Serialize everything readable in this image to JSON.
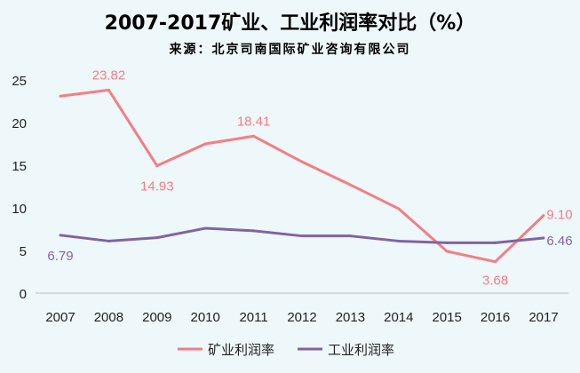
{
  "chart_data": {
    "type": "line",
    "title": "2007-2017矿业、工业利润率对比（%）",
    "subtitle": "来源：北京司南国际矿业咨询有限公司",
    "categories": [
      "2007",
      "2008",
      "2009",
      "2010",
      "2011",
      "2012",
      "2013",
      "2014",
      "2015",
      "2016",
      "2017"
    ],
    "ylim": [
      0,
      25
    ],
    "yticks": [
      "0",
      "5",
      "10",
      "15",
      "20",
      "25"
    ],
    "grid": false,
    "legend": "bottom",
    "series": [
      {
        "name": "矿业利润率",
        "color": "#f47e84",
        "values": [
          23.1,
          23.82,
          14.93,
          17.5,
          18.41,
          15.4,
          12.7,
          9.9,
          4.9,
          3.68,
          9.1
        ],
        "labels": [
          null,
          "23.82",
          "14.93",
          null,
          "18.41",
          null,
          null,
          null,
          null,
          "3.68",
          "9.10"
        ]
      },
      {
        "name": "工业利润率",
        "color": "#8064a2",
        "values": [
          6.79,
          6.1,
          6.5,
          7.6,
          7.3,
          6.7,
          6.7,
          6.1,
          5.9,
          5.9,
          6.46
        ],
        "labels": [
          "6.79",
          null,
          null,
          null,
          null,
          null,
          null,
          null,
          null,
          null,
          "6.46"
        ]
      }
    ]
  }
}
